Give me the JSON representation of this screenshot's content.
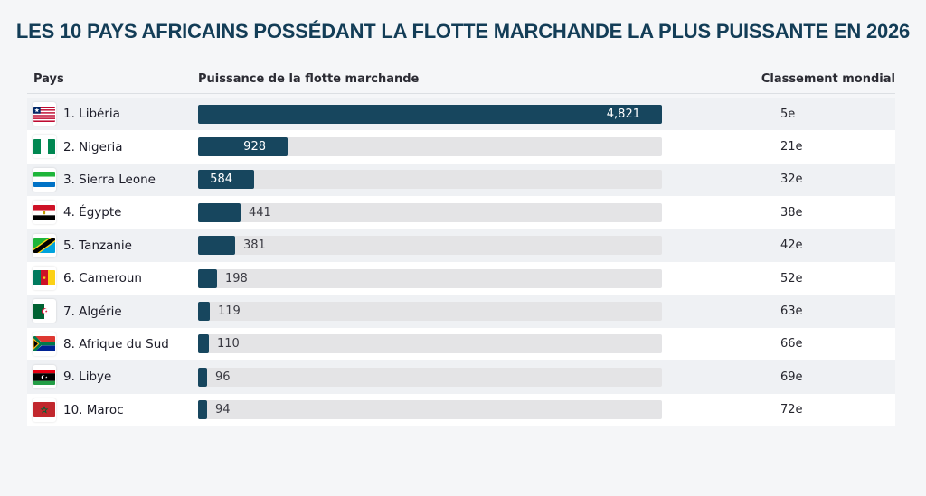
{
  "title": "LES 10 PAYS AFRICAINS POSSÉDANT LA FLOTTE MARCHANDE LA PLUS PUISSANTE EN 2026",
  "columns": {
    "pays": "Pays",
    "puissance": "Puissance de la flotte marchande",
    "classement": "Classement mondial"
  },
  "colors": {
    "page_bg": "#f5f6f8",
    "bar_fill": "#17465e",
    "bar_track": "#e4e4e6",
    "title_text": "#133d57",
    "row_alt_bg": "#ffffff",
    "row_base_bg": "#eff1f4"
  },
  "max_value": 4821,
  "rows": [
    {
      "label": "1. Libéria",
      "flag": "liberia",
      "flag_icon": "liberia-flag-icon",
      "value": 4821,
      "value_label": "4,821",
      "classement": "5e"
    },
    {
      "label": "2. Nigeria",
      "flag": "nigeria",
      "flag_icon": "nigeria-flag-icon",
      "value": 928,
      "value_label": "928",
      "classement": "21e"
    },
    {
      "label": "3. Sierra Leone",
      "flag": "sierra_leone",
      "flag_icon": "sierra-leone-flag-icon",
      "value": 584,
      "value_label": "584",
      "classement": "32e"
    },
    {
      "label": "4. Égypte",
      "flag": "egypt",
      "flag_icon": "egypt-flag-icon",
      "value": 441,
      "value_label": "441",
      "classement": "38e"
    },
    {
      "label": "5. Tanzanie",
      "flag": "tanzania",
      "flag_icon": "tanzania-flag-icon",
      "value": 381,
      "value_label": "381",
      "classement": "42e"
    },
    {
      "label": "6. Cameroun",
      "flag": "cameroon",
      "flag_icon": "cameroon-flag-icon",
      "value": 198,
      "value_label": "198",
      "classement": "52e"
    },
    {
      "label": "7. Algérie",
      "flag": "algeria",
      "flag_icon": "algeria-flag-icon",
      "value": 119,
      "value_label": "119",
      "classement": "63e"
    },
    {
      "label": "8. Afrique du Sud",
      "flag": "south_africa",
      "flag_icon": "south-africa-flag-icon",
      "value": 110,
      "value_label": "110",
      "classement": "66e"
    },
    {
      "label": "9. Libye",
      "flag": "libya",
      "flag_icon": "libya-flag-icon",
      "value": 96,
      "value_label": "96",
      "classement": "69e"
    },
    {
      "label": "10. Maroc",
      "flag": "morocco",
      "flag_icon": "morocco-flag-icon",
      "value": 94,
      "value_label": "94",
      "classement": "72e"
    }
  ],
  "chart_data": {
    "type": "bar",
    "orientation": "horizontal",
    "title": "LES 10 PAYS AFRICAINS POSSÉDANT LA FLOTTE MARCHANDE LA PLUS PUISSANTE EN 2026",
    "categories": [
      "Libéria",
      "Nigeria",
      "Sierra Leone",
      "Égypte",
      "Tanzanie",
      "Cameroun",
      "Algérie",
      "Afrique du Sud",
      "Libye",
      "Maroc"
    ],
    "series": [
      {
        "name": "Puissance de la flotte marchande",
        "values": [
          4821,
          928,
          584,
          441,
          381,
          198,
          119,
          110,
          96,
          94
        ]
      },
      {
        "name": "Classement mondial",
        "values": [
          "5e",
          "21e",
          "32e",
          "38e",
          "42e",
          "52e",
          "63e",
          "66e",
          "69e",
          "72e"
        ]
      }
    ],
    "xlabel": "Puissance de la flotte marchande",
    "ylabel": "Pays",
    "xlim": [
      0,
      4821
    ],
    "grid": false,
    "legend": false
  }
}
